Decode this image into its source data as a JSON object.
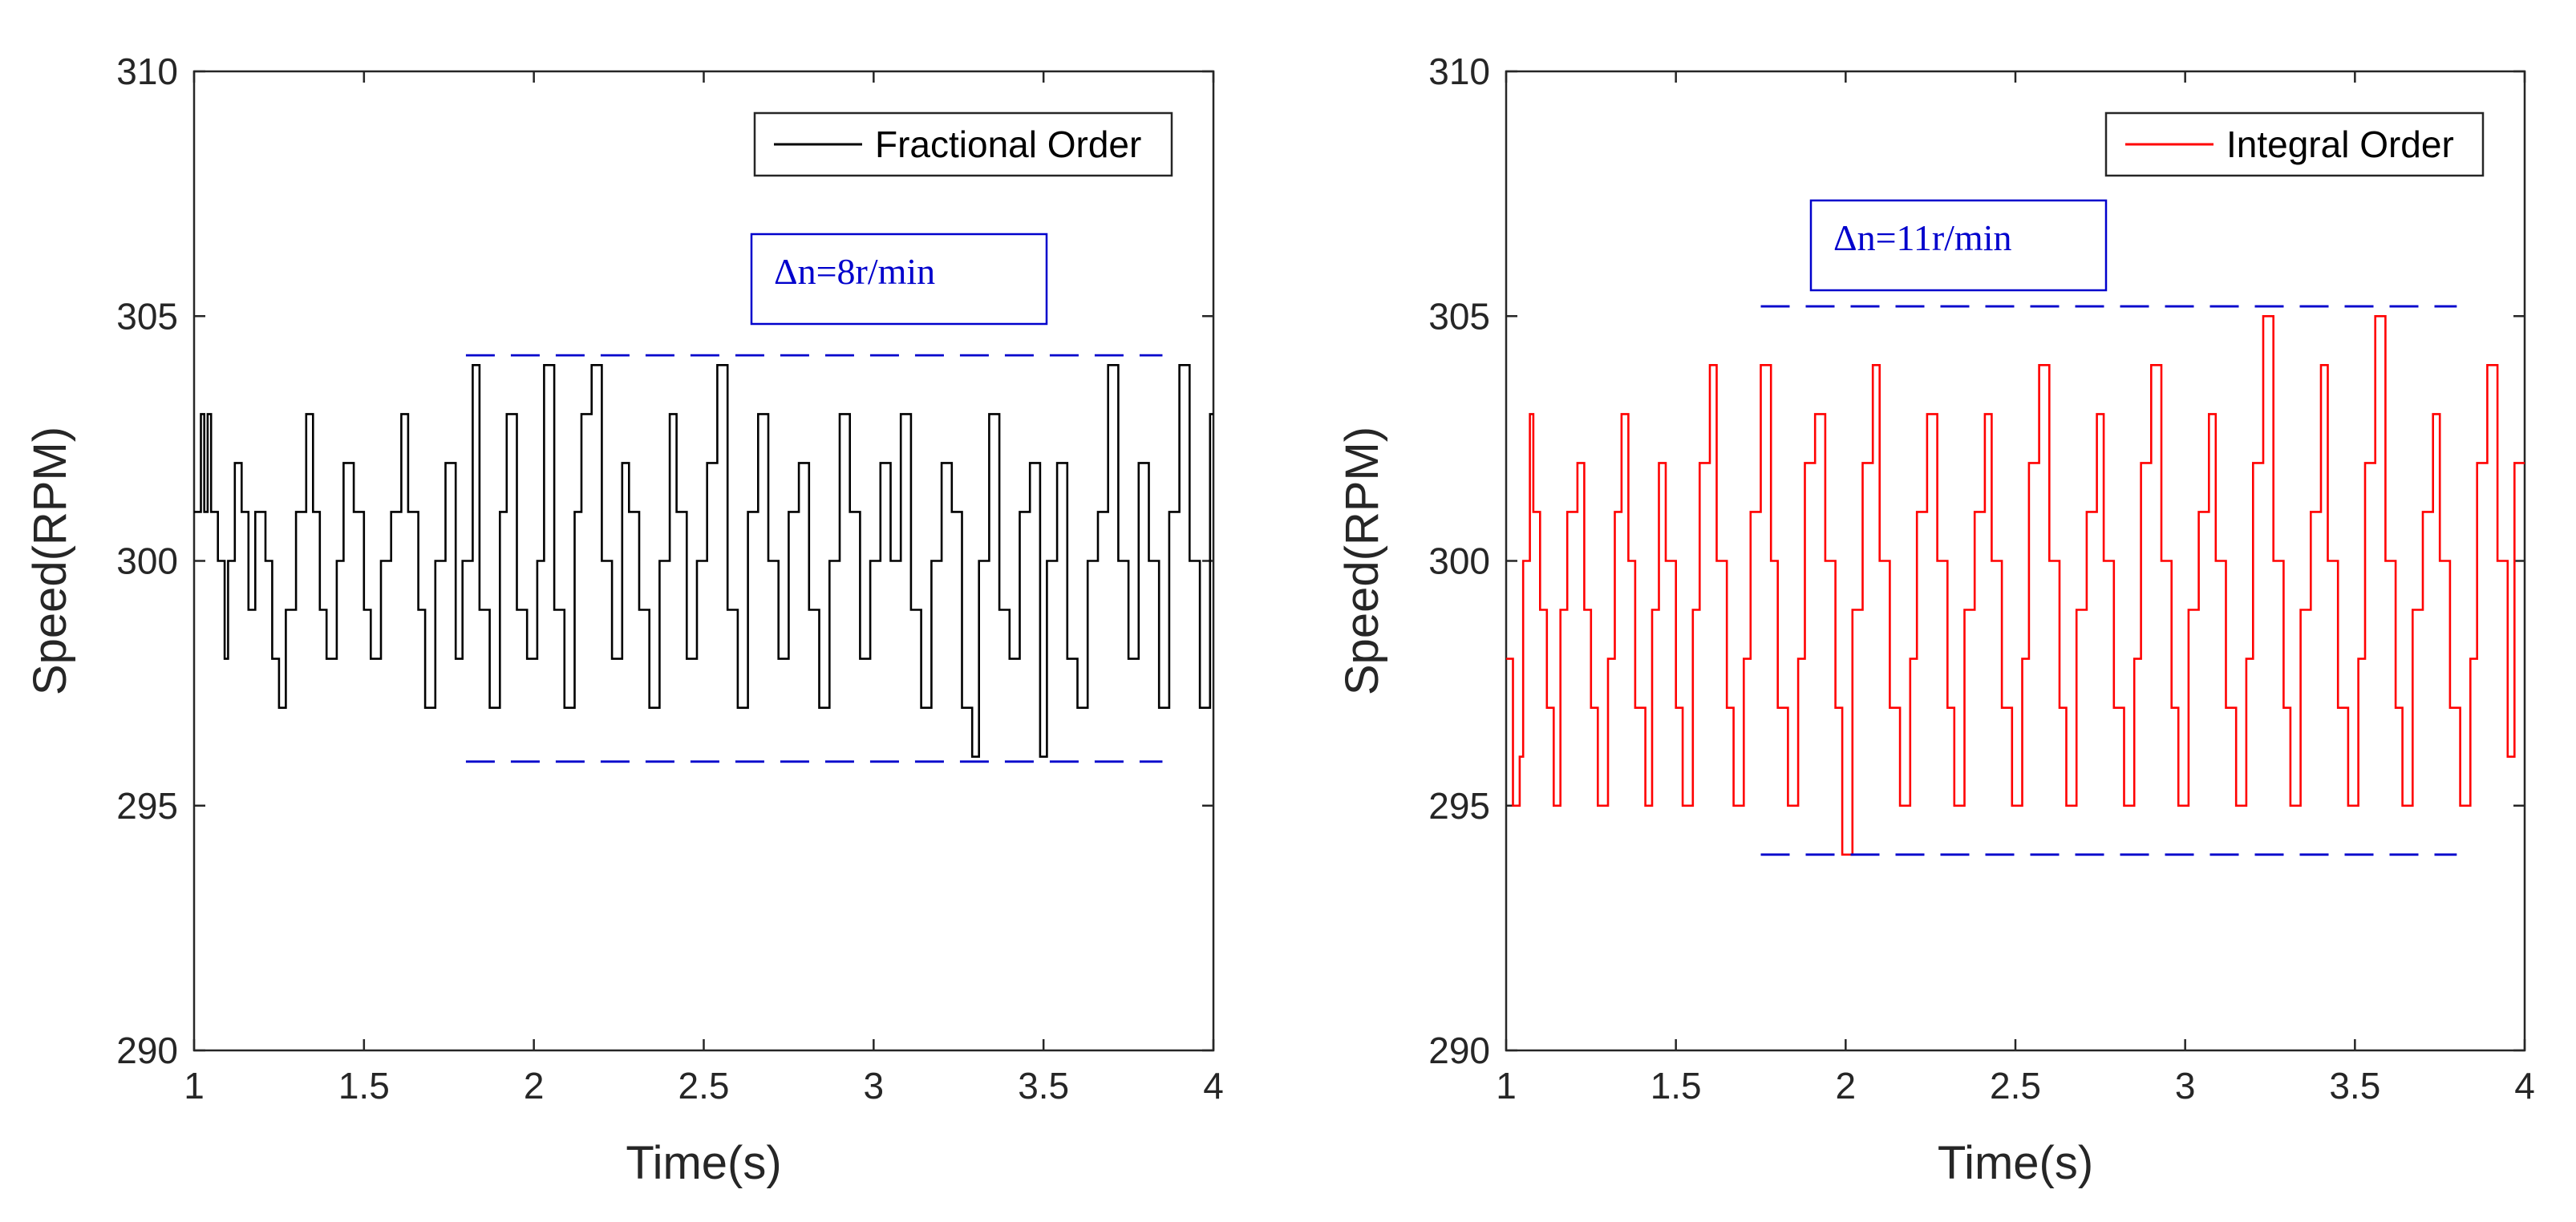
{
  "chart_data": [
    {
      "type": "line",
      "title": "",
      "xlabel": "Time(s)",
      "ylabel": "Speed(RPM)",
      "xlim": [
        1,
        4
      ],
      "ylim": [
        290,
        310
      ],
      "xticks": [
        1,
        1.5,
        2,
        2.5,
        3,
        3.5,
        4
      ],
      "yticks": [
        290,
        295,
        300,
        305,
        310
      ],
      "xtick_labels": [
        "1",
        "1.5",
        "2",
        "2.5",
        "3",
        "3.5",
        "4"
      ],
      "ytick_labels": [
        "290",
        "295",
        "300",
        "305",
        "310"
      ],
      "grid": false,
      "legend_position": "top-right",
      "series": [
        {
          "name": "Fractional Order",
          "color": "#000000",
          "step": true,
          "x": [
            1.0,
            1.02,
            1.03,
            1.04,
            1.05,
            1.07,
            1.09,
            1.1,
            1.12,
            1.14,
            1.16,
            1.18,
            1.21,
            1.23,
            1.25,
            1.27,
            1.3,
            1.33,
            1.35,
            1.37,
            1.39,
            1.42,
            1.44,
            1.47,
            1.5,
            1.52,
            1.55,
            1.58,
            1.61,
            1.63,
            1.66,
            1.68,
            1.71,
            1.74,
            1.77,
            1.79,
            1.82,
            1.84,
            1.87,
            1.9,
            1.92,
            1.95,
            1.98,
            2.01,
            2.03,
            2.06,
            2.09,
            2.12,
            2.14,
            2.17,
            2.2,
            2.23,
            2.26,
            2.28,
            2.31,
            2.34,
            2.37,
            2.4,
            2.42,
            2.45,
            2.48,
            2.51,
            2.54,
            2.57,
            2.6,
            2.63,
            2.66,
            2.69,
            2.72,
            2.75,
            2.78,
            2.81,
            2.84,
            2.87,
            2.9,
            2.93,
            2.96,
            2.99,
            3.02,
            3.05,
            3.08,
            3.11,
            3.14,
            3.17,
            3.2,
            3.23,
            3.26,
            3.29,
            3.31,
            3.34,
            3.37,
            3.4,
            3.43,
            3.46,
            3.49,
            3.51,
            3.54,
            3.57,
            3.6,
            3.63,
            3.66,
            3.69,
            3.72,
            3.75,
            3.78,
            3.81,
            3.84,
            3.87,
            3.9,
            3.93,
            3.96,
            3.99
          ],
          "y": [
            301,
            303,
            301,
            303,
            301,
            300,
            298,
            300,
            302,
            301,
            299,
            301,
            300,
            298,
            297,
            299,
            301,
            303,
            301,
            299,
            298,
            300,
            302,
            301,
            299,
            298,
            300,
            301,
            303,
            301,
            299,
            297,
            300,
            302,
            298,
            300,
            304,
            299,
            297,
            301,
            303,
            299,
            298,
            300,
            304,
            299,
            297,
            301,
            303,
            304,
            300,
            298,
            302,
            301,
            299,
            297,
            300,
            303,
            301,
            298,
            300,
            302,
            304,
            299,
            297,
            301,
            303,
            300,
            298,
            301,
            302,
            299,
            297,
            300,
            303,
            301,
            298,
            300,
            302,
            300,
            303,
            299,
            297,
            300,
            302,
            301,
            297,
            296,
            300,
            303,
            299,
            298,
            301,
            302,
            296,
            300,
            302,
            298,
            297,
            300,
            301,
            304,
            300,
            298,
            302,
            300,
            297,
            301,
            304,
            300,
            297,
            303
          ]
        },
        {
          "name": "Integral Order",
          "color": "#ff0000",
          "step": true,
          "x": [
            1.0,
            1.02,
            1.04,
            1.05,
            1.07,
            1.08,
            1.1,
            1.12,
            1.14,
            1.16,
            1.18,
            1.21,
            1.23,
            1.25,
            1.27,
            1.3,
            1.32,
            1.34,
            1.36,
            1.38,
            1.41,
            1.43,
            1.45,
            1.47,
            1.5,
            1.52,
            1.55,
            1.57,
            1.6,
            1.62,
            1.65,
            1.67,
            1.7,
            1.72,
            1.75,
            1.78,
            1.8,
            1.83,
            1.86,
            1.88,
            1.91,
            1.94,
            1.97,
            1.99,
            2.02,
            2.05,
            2.08,
            2.1,
            2.13,
            2.16,
            2.19,
            2.21,
            2.24,
            2.27,
            2.3,
            2.32,
            2.35,
            2.38,
            2.41,
            2.43,
            2.46,
            2.49,
            2.52,
            2.54,
            2.57,
            2.6,
            2.63,
            2.65,
            2.68,
            2.71,
            2.74,
            2.76,
            2.79,
            2.82,
            2.85,
            2.87,
            2.9,
            2.93,
            2.96,
            2.98,
            3.01,
            3.04,
            3.07,
            3.09,
            3.12,
            3.15,
            3.18,
            3.2,
            3.23,
            3.26,
            3.29,
            3.31,
            3.34,
            3.37,
            3.4,
            3.42,
            3.45,
            3.48,
            3.51,
            3.53,
            3.56,
            3.59,
            3.62,
            3.64,
            3.67,
            3.7,
            3.73,
            3.75,
            3.78,
            3.81,
            3.84,
            3.86,
            3.89,
            3.92,
            3.95,
            3.97
          ],
          "y": [
            298,
            295,
            296,
            300,
            303,
            301,
            299,
            297,
            295,
            299,
            301,
            302,
            299,
            297,
            295,
            298,
            301,
            303,
            300,
            297,
            295,
            299,
            302,
            300,
            297,
            295,
            299,
            302,
            304,
            300,
            297,
            295,
            298,
            301,
            304,
            300,
            297,
            295,
            298,
            302,
            303,
            300,
            297,
            294,
            299,
            302,
            304,
            300,
            297,
            295,
            298,
            301,
            303,
            300,
            297,
            295,
            299,
            301,
            303,
            300,
            297,
            295,
            298,
            302,
            304,
            300,
            297,
            295,
            299,
            301,
            303,
            300,
            297,
            295,
            298,
            302,
            304,
            300,
            297,
            295,
            299,
            301,
            303,
            300,
            297,
            295,
            298,
            302,
            305,
            300,
            297,
            295,
            299,
            301,
            304,
            300,
            297,
            295,
            298,
            302,
            305,
            300,
            297,
            295,
            299,
            301,
            303,
            300,
            297,
            295,
            298,
            302,
            304,
            300,
            296,
            302
          ]
        }
      ],
      "annotations": [
        {
          "text": "Δn=8r/min",
          "color": "#0000cc"
        },
        {
          "text": "Δn=11r/min",
          "color": "#0000cc"
        }
      ],
      "bands": [
        {
          "series": "Fractional Order",
          "x": [
            1.8,
            3.85
          ],
          "upper": 304.2,
          "lower": 295.9,
          "color": "#0000cc",
          "style": "dashed"
        },
        {
          "series": "Integral Order",
          "x": [
            1.75,
            3.8
          ],
          "upper": 305.2,
          "lower": 294.0,
          "color": "#0000cc",
          "style": "dashed"
        }
      ]
    }
  ]
}
